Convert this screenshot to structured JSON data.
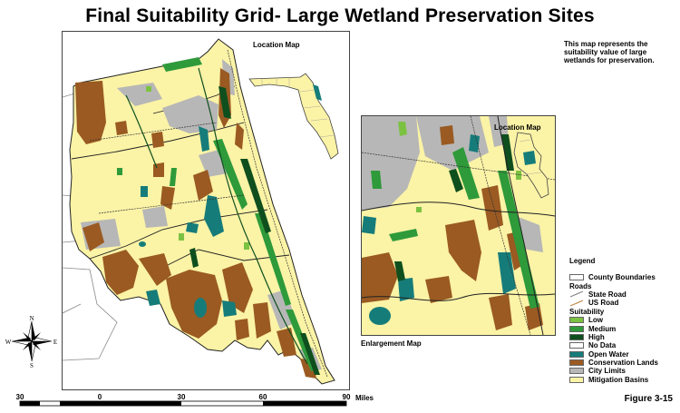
{
  "title": "Final Suitability Grid- Large Wetland Preservation Sites",
  "description": "This map represents the suitability value of large wetlands for preservation.",
  "main_map": {
    "location_map_label": "Location Map"
  },
  "enlargement_map": {
    "location_map_label": "Location Map",
    "caption": "Enlargement Map"
  },
  "compass": {
    "n": "N",
    "s": "S",
    "e": "E",
    "w": "W"
  },
  "scale_bar": {
    "ticks": [
      "30",
      "0",
      "30",
      "60",
      "90"
    ],
    "unit": "Miles"
  },
  "legend": {
    "heading": "Legend",
    "county_boundaries": "County Boundaries",
    "roads_heading": "Roads",
    "state_road": "State Road",
    "us_road": "US Road",
    "suitability_heading": "Suitability",
    "items": [
      {
        "label": "Low",
        "color": "#7cc242"
      },
      {
        "label": "Medium",
        "color": "#2e9a3a"
      },
      {
        "label": "High",
        "color": "#0f4f1e"
      },
      {
        "label": "No Data",
        "color": "#ffffff"
      },
      {
        "label": "Open Water",
        "color": "#167c7a"
      },
      {
        "label": "Conservation Lands",
        "color": "#9a5a22"
      },
      {
        "label": "City Limits",
        "color": "#b7b7b7"
      },
      {
        "label": "Mitigation Basins",
        "color": "#fbf3a6"
      }
    ]
  },
  "figure_label": "Figure 3-15"
}
